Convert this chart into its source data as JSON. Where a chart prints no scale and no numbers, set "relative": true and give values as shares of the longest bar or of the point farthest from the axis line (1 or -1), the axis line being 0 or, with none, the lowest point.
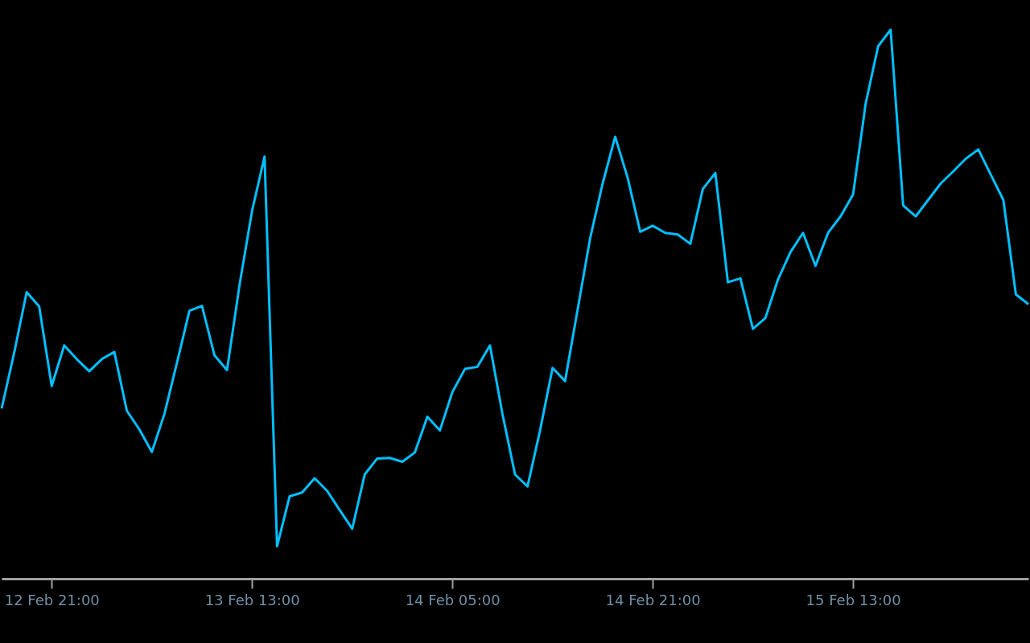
{
  "chart_data": {
    "type": "line",
    "relative": true,
    "grid": false,
    "legend": false,
    "categories": [
      null,
      null,
      null,
      null,
      "12 Feb 21:00",
      null,
      null,
      null,
      null,
      null,
      null,
      null,
      null,
      null,
      null,
      null,
      null,
      null,
      null,
      null,
      "13 Feb 13:00",
      null,
      null,
      null,
      null,
      null,
      null,
      null,
      null,
      null,
      null,
      null,
      null,
      null,
      null,
      null,
      "14 Feb 05:00",
      null,
      null,
      null,
      null,
      null,
      null,
      null,
      null,
      null,
      null,
      null,
      null,
      null,
      null,
      null,
      "14 Feb 21:00",
      null,
      null,
      null,
      null,
      null,
      null,
      null,
      null,
      null,
      null,
      null,
      null,
      null,
      null,
      null,
      "15 Feb 13:00",
      null,
      null,
      null,
      null,
      null,
      null,
      null,
      null,
      null,
      null,
      null,
      null,
      null,
      null
    ],
    "series": [
      {
        "color": "#00bfff",
        "values": [
          0.31,
          0.411,
          0.522,
          0.496,
          0.351,
          0.425,
          0.4,
          0.378,
          0.4,
          0.413,
          0.306,
          0.272,
          0.231,
          0.3,
          0.393,
          0.488,
          0.497,
          0.407,
          0.38,
          0.535,
          0.67,
          0.769,
          0.059,
          0.15,
          0.157,
          0.183,
          0.16,
          0.125,
          0.091,
          0.19,
          0.219,
          0.22,
          0.213,
          0.23,
          0.295,
          0.27,
          0.34,
          0.382,
          0.386,
          0.425,
          0.3,
          0.19,
          0.168,
          0.27,
          0.384,
          0.36,
          0.49,
          0.62,
          0.72,
          0.805,
          0.73,
          0.632,
          0.643,
          0.63,
          0.627,
          0.61,
          0.71,
          0.739,
          0.54,
          0.547,
          0.455,
          0.475,
          0.545,
          0.595,
          0.63,
          0.57,
          0.63,
          0.66,
          0.7,
          0.865,
          0.97,
          1,
          0.68,
          0.66,
          0.69,
          0.72,
          0.742,
          0.765,
          0.782,
          0.736,
          0.69,
          0.518,
          0.5
        ]
      }
    ]
  }
}
